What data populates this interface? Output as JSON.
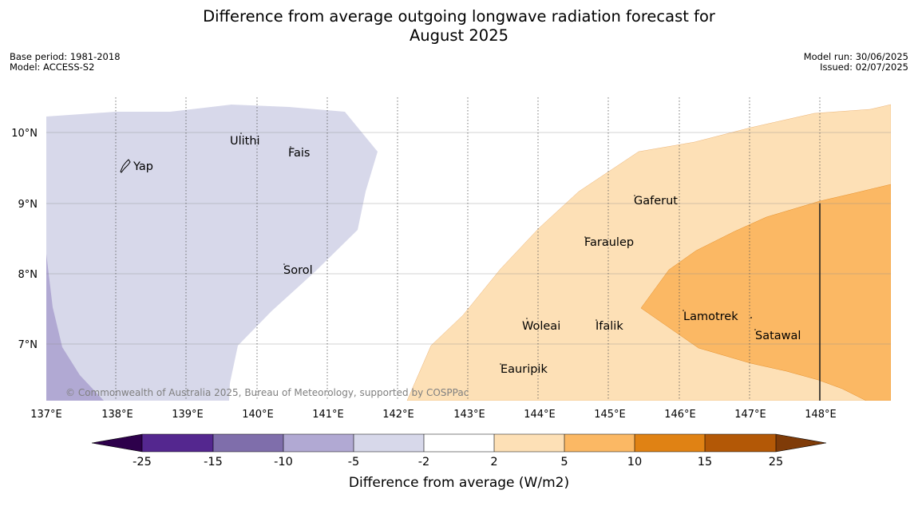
{
  "title_line1": "Difference from average outgoing longwave radiation forecast for",
  "title_line2": "August 2025",
  "base_period": "Base period: 1981-2018",
  "model": "Model: ACCESS-S2",
  "model_run": "Model run: 30/06/2025",
  "issued": "Issued: 02/07/2025",
  "copyright": "© Commonwealth of Australia 2025, Bureau of Meteorology, supported by COSPPac",
  "map": {
    "lon_range": [
      137,
      149
    ],
    "lat_range": [
      6.2,
      10.4
    ],
    "lon_ticks": [
      "137°E",
      "138°E",
      "139°E",
      "140°E",
      "141°E",
      "142°E",
      "143°E",
      "144°E",
      "145°E",
      "146°E",
      "147°E",
      "148°E"
    ],
    "lat_ticks": [
      "10°N",
      "9°N",
      "8°N",
      "7°N"
    ],
    "places": [
      {
        "name": "Ulithi",
        "lon": 139.8,
        "lat": 9.9
      },
      {
        "name": "Fais",
        "lon": 140.5,
        "lat": 9.75
      },
      {
        "name": "Yap",
        "lon": 138.15,
        "lat": 9.5
      },
      {
        "name": "Gaferut",
        "lon": 145.4,
        "lat": 9.05
      },
      {
        "name": "Faraulep",
        "lon": 144.65,
        "lat": 8.45
      },
      {
        "name": "Sorol",
        "lon": 140.4,
        "lat": 8.05
      },
      {
        "name": "Lamotrek",
        "lon": 146.05,
        "lat": 7.4
      },
      {
        "name": "Woleai",
        "lon": 143.85,
        "lat": 7.3
      },
      {
        "name": "Ifalik",
        "lon": 144.8,
        "lat": 7.3
      },
      {
        "name": "Satawal",
        "lon": 147.05,
        "lat": 7.15
      },
      {
        "name": "Eauripik",
        "lon": 143.45,
        "lat": 6.65
      }
    ]
  },
  "colorbar": {
    "label": "Difference from average (W/m2)",
    "ticks": [
      "-25",
      "-15",
      "-10",
      "-5",
      "-2",
      "2",
      "5",
      "10",
      "15",
      "25"
    ],
    "colors": [
      "#54278f",
      "#7f6eab",
      "#b1a9d3",
      "#d7d8ea",
      "#ffffff",
      "#fde0b6",
      "#fbb864",
      "#e08214",
      "#b35806"
    ],
    "extend_low_color": "#2d004b",
    "extend_high_color": "#7f3b08"
  }
}
